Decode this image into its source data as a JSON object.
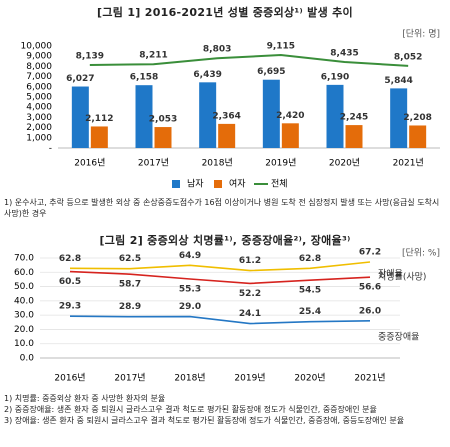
{
  "chart_data": [
    {
      "type": "bar",
      "title": "[그림 1] 2016-2021년 성별 중증외상¹⁾ 발생 추이",
      "unit": "[단위: 명]",
      "categories": [
        "2016년",
        "2017년",
        "2018년",
        "2019년",
        "2020년",
        "2021년"
      ],
      "series": [
        {
          "name": "남자",
          "color": "#1f78c8",
          "values": [
            6027,
            6158,
            6439,
            6695,
            6190,
            5844
          ],
          "value_labels": [
            "6,027",
            "6,158",
            "6,439",
            "6,695",
            "6,190",
            "5,844"
          ]
        },
        {
          "name": "여자",
          "color": "#e46c0a",
          "values": [
            2112,
            2053,
            2364,
            2420,
            2245,
            2208
          ],
          "value_labels": [
            "2,112",
            "2,053",
            "2,364",
            "2,420",
            "2,245",
            "2,208"
          ]
        },
        {
          "name": "전체",
          "type": "line",
          "color": "#3a8e3a",
          "values": [
            8139,
            8211,
            8803,
            9115,
            8435,
            8052
          ],
          "value_labels": [
            "8,139",
            "8,211",
            "8,803",
            "9,115",
            "8,435",
            "8,052"
          ]
        }
      ],
      "ylim": [
        0,
        10000
      ],
      "yticks": [
        {
          "value": 0,
          "label": "-"
        },
        {
          "value": 1000,
          "label": "1,000"
        },
        {
          "value": 2000,
          "label": "2,000"
        },
        {
          "value": 3000,
          "label": "3,000"
        },
        {
          "value": 4000,
          "label": "4,000"
        },
        {
          "value": 5000,
          "label": "5,000"
        },
        {
          "value": 6000,
          "label": "6,000"
        },
        {
          "value": 7000,
          "label": "7,000"
        },
        {
          "value": 8000,
          "label": "8,000"
        },
        {
          "value": 9000,
          "label": "9,000"
        },
        {
          "value": 10000,
          "label": "10,000"
        }
      ],
      "grid": false,
      "legend": "bottom",
      "notes": [
        "1) 운수사고, 추락 등으로 발생한 외상 중 손상중증도점수가 16점 이상이거나 병원 도착 전 심장정지 발생 또는 사망(응급실 도착시 사망)한 경우"
      ]
    },
    {
      "type": "line",
      "title": "[그림 2] 중증외상 치명률¹⁾, 중증장애율²⁾, 장애율³⁾",
      "unit": "[단위: %]",
      "categories": [
        "2016년",
        "2017년",
        "2018년",
        "2019년",
        "2020년",
        "2021년"
      ],
      "series": [
        {
          "name": "장애율",
          "color": "#f0be00",
          "values": [
            62.8,
            62.5,
            64.9,
            61.2,
            62.8,
            67.2
          ]
        },
        {
          "name": "치명률(사망)",
          "color": "#d6231e",
          "values": [
            60.5,
            58.7,
            55.3,
            52.2,
            54.5,
            56.6
          ]
        },
        {
          "name": "중증장애율",
          "color": "#2477c4",
          "values": [
            29.3,
            28.9,
            29.0,
            24.1,
            25.4,
            26.0
          ],
          "value_labels": [
            "29.3",
            "28.9",
            "29.0",
            "24.1",
            "25.4",
            "26.0"
          ]
        }
      ],
      "ylim": [
        0,
        70
      ],
      "yticks": [
        {
          "value": 0,
          "label": "0.0"
        },
        {
          "value": 10,
          "label": "10.0"
        },
        {
          "value": 20,
          "label": "20.0"
        },
        {
          "value": 30,
          "label": "30.0"
        },
        {
          "value": 40,
          "label": "40.0"
        },
        {
          "value": 50,
          "label": "50.0"
        },
        {
          "value": 60,
          "label": "60.0"
        },
        {
          "value": 70,
          "label": "70.0"
        }
      ],
      "grid": true,
      "notes": [
        "1) 치명률: 중증외상 환자 중 사망한 환자의 분율",
        "2) 중증장애율: 생존 환자 중 퇴원시 글라스고우 결과 척도로 평가된 활동장애 정도가 식물인간, 중증장애인 분율",
        "3) 장애율: 생존 환자 중 퇴원시 글라스고우 결과 척도로 평가된 활동장애 정도가 식물인간, 중증장애, 중등도장애인 분율"
      ]
    }
  ]
}
